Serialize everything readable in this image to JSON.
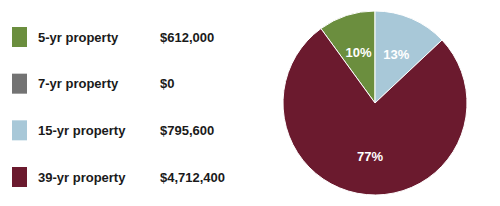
{
  "chart_data": {
    "type": "pie",
    "categories": [
      "5-yr property",
      "7-yr property",
      "15-yr property",
      "39-yr property"
    ],
    "values": [
      10,
      0,
      13,
      77
    ],
    "value_labels": [
      "10%",
      null,
      "13%",
      "77%"
    ],
    "amounts": [
      612000,
      0,
      795600,
      4712400
    ],
    "amount_labels": [
      "$612,000",
      "$0",
      "$795,600",
      "$4,712,400"
    ],
    "colors": [
      "#6b8e3e",
      "#737373",
      "#a8c8d8",
      "#6b1a2e"
    ],
    "legend": "left",
    "data_labels": true
  }
}
